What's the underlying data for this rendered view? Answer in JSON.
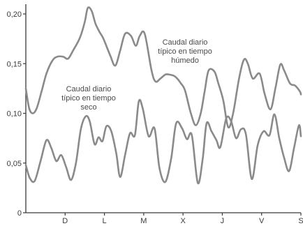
{
  "chart_data": {
    "type": "line",
    "title": "",
    "xlabel": "",
    "ylabel": "",
    "ylim": [
      0,
      0.2
    ],
    "yticks": [
      "0,20",
      "0,15",
      "0,10",
      "0,05",
      "0"
    ],
    "ytick_values": [
      0.2,
      0.15,
      0.1,
      0.05,
      0
    ],
    "xlim": [
      0,
      14
    ],
    "xticks": [
      "D",
      "L",
      "M",
      "X",
      "J",
      "V",
      "S"
    ],
    "xtick_values": [
      2,
      4,
      6,
      8,
      10,
      12,
      14
    ],
    "grid": false,
    "line_color": "#8a8a8a",
    "axis_color": "#3a3a3a",
    "annotations": [
      {
        "lines": [
          "Caudal diario",
          "típico en tiempo",
          "húmedo"
        ],
        "series": "wet"
      },
      {
        "lines": [
          "Caudal diario",
          "típico en tiempo",
          "seco"
        ],
        "series": "dry"
      }
    ],
    "series": [
      {
        "id": "wet",
        "x": [
          0,
          0.17,
          0.35,
          0.55,
          0.8,
          1.05,
          1.35,
          1.6,
          1.9,
          2.15,
          2.4,
          2.75,
          3.0,
          3.15,
          3.35,
          3.55,
          3.75,
          3.95,
          4.3,
          4.55,
          4.8,
          5.05,
          5.35,
          5.6,
          5.8,
          6.05,
          6.4,
          6.6,
          6.85,
          7.1,
          7.3,
          7.6,
          7.9,
          8.1,
          8.4,
          8.65,
          8.9,
          9.1,
          9.3,
          9.6,
          9.8,
          10.05,
          10.3,
          10.55,
          10.85,
          11.1,
          11.3,
          11.55,
          11.9,
          12.15,
          12.45,
          12.7,
          12.95,
          13.15,
          13.45,
          13.7,
          13.95,
          14.0
        ],
        "y": [
          0.125,
          0.105,
          0.1,
          0.105,
          0.122,
          0.14,
          0.153,
          0.157,
          0.157,
          0.155,
          0.163,
          0.176,
          0.192,
          0.206,
          0.203,
          0.19,
          0.182,
          0.175,
          0.158,
          0.148,
          0.163,
          0.18,
          0.178,
          0.168,
          0.178,
          0.18,
          0.143,
          0.132,
          0.135,
          0.139,
          0.139,
          0.137,
          0.13,
          0.123,
          0.1,
          0.088,
          0.1,
          0.122,
          0.143,
          0.142,
          0.13,
          0.113,
          0.086,
          0.1,
          0.135,
          0.154,
          0.15,
          0.135,
          0.14,
          0.12,
          0.104,
          0.125,
          0.149,
          0.143,
          0.13,
          0.128,
          0.122,
          0.119
        ]
      },
      {
        "id": "dry",
        "x": [
          0,
          0.2,
          0.45,
          0.75,
          1.05,
          1.3,
          1.55,
          1.8,
          2.05,
          2.3,
          2.55,
          2.8,
          3.05,
          3.25,
          3.5,
          3.7,
          3.9,
          4.1,
          4.35,
          4.6,
          4.8,
          5.05,
          5.3,
          5.55,
          5.75,
          5.95,
          6.25,
          6.55,
          6.8,
          7.1,
          7.4,
          7.65,
          7.95,
          8.2,
          8.45,
          8.75,
          9.0,
          9.2,
          9.45,
          9.7,
          9.9,
          10.2,
          10.45,
          10.7,
          10.95,
          11.2,
          11.5,
          11.8,
          12.1,
          12.4,
          12.65,
          12.9,
          13.15,
          13.4,
          13.65,
          13.9,
          14.0
        ],
        "y": [
          0.048,
          0.035,
          0.032,
          0.052,
          0.073,
          0.065,
          0.052,
          0.058,
          0.046,
          0.033,
          0.05,
          0.084,
          0.097,
          0.092,
          0.069,
          0.076,
          0.072,
          0.087,
          0.082,
          0.06,
          0.036,
          0.058,
          0.08,
          0.078,
          0.112,
          0.105,
          0.077,
          0.085,
          0.045,
          0.031,
          0.055,
          0.09,
          0.085,
          0.074,
          0.078,
          0.03,
          0.054,
          0.09,
          0.082,
          0.073,
          0.066,
          0.095,
          0.092,
          0.075,
          0.084,
          0.079,
          0.034,
          0.068,
          0.082,
          0.078,
          0.099,
          0.075,
          0.055,
          0.042,
          0.065,
          0.088,
          0.077
        ]
      }
    ]
  }
}
